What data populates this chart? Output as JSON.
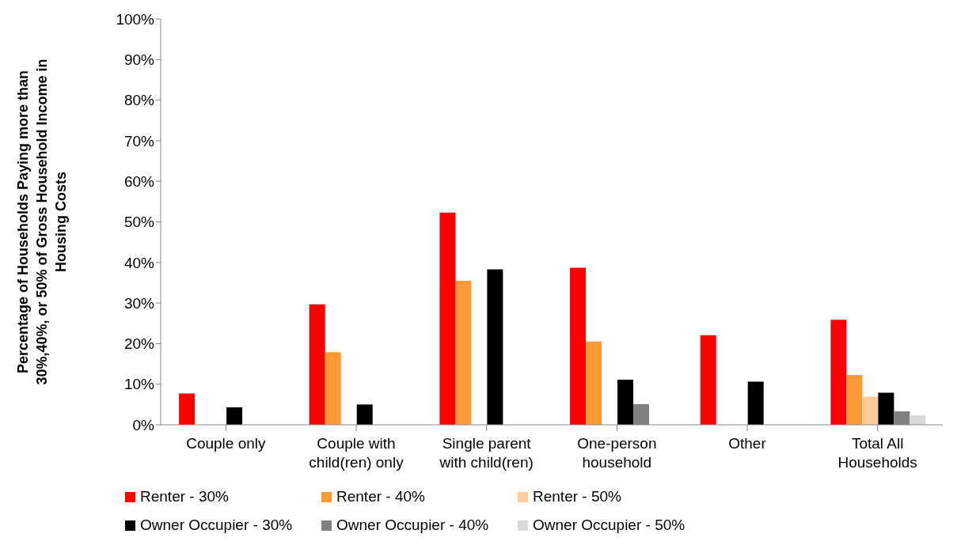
{
  "chart_data": {
    "type": "bar",
    "ylabel": "Percentage of Households Paying more than\n30%,40%, or 50% of Gross Household Income in\nHousing Costs",
    "categories": [
      "Couple only",
      "Couple with\nchild(ren) only",
      "Single parent\nwith child(ren)",
      "One-person\nhousehold",
      "Other",
      "Total All\nHouseholds"
    ],
    "series": [
      {
        "name": "Renter - 30%",
        "color": "#ff0000",
        "values": [
          7.7,
          29.7,
          52.3,
          38.7,
          22.1,
          25.9
        ]
      },
      {
        "name": "Renter - 40%",
        "color": "#ff9933",
        "values": [
          null,
          17.9,
          35.5,
          20.5,
          null,
          12.3
        ]
      },
      {
        "name": "Renter - 50%",
        "color": "#ffcc99",
        "values": [
          null,
          null,
          null,
          null,
          null,
          6.9
        ]
      },
      {
        "name": "Owner Occupier - 30%",
        "color": "#000000",
        "values": [
          4.3,
          5.0,
          38.3,
          11.1,
          10.6,
          7.9
        ]
      },
      {
        "name": "Owner Occupier - 40%",
        "color": "#808080",
        "values": [
          null,
          null,
          null,
          5.1,
          null,
          3.3
        ]
      },
      {
        "name": "Owner Occupier - 50%",
        "color": "#d9d9d9",
        "values": [
          null,
          null,
          null,
          null,
          null,
          2.3
        ]
      }
    ],
    "ylim": [
      0,
      100
    ],
    "yticks": [
      {
        "value": 0,
        "label": "0%"
      },
      {
        "value": 10,
        "label": "10%"
      },
      {
        "value": 20,
        "label": "20%"
      },
      {
        "value": 30,
        "label": "30%"
      },
      {
        "value": 40,
        "label": "40%"
      },
      {
        "value": 50,
        "label": "50%"
      },
      {
        "value": 60,
        "label": "60%"
      },
      {
        "value": 70,
        "label": "70%"
      },
      {
        "value": 80,
        "label": "80%"
      },
      {
        "value": 90,
        "label": "90%"
      },
      {
        "value": 100,
        "label": "100%"
      }
    ],
    "grid": false,
    "legend": "bottom"
  }
}
